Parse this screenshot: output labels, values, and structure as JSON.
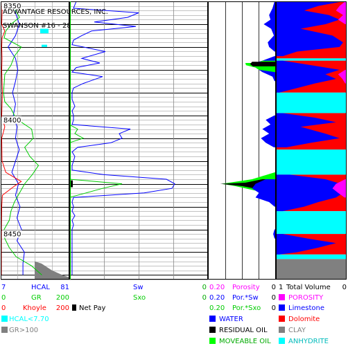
{
  "header": {
    "company": "ADVANTAGE RESOURCES, INC.",
    "well": "SWANSON #16 - 28"
  },
  "chart_data": {
    "type": "line",
    "title": "",
    "depth_axis": {
      "label": "",
      "range": [
        8350,
        8472
      ],
      "tick_labels": [
        "8350",
        "8400",
        "8450"
      ],
      "tick_values": [
        8350,
        8400,
        8450
      ]
    },
    "tracks": [
      {
        "name": "track-1",
        "curves": [
          {
            "label": "HCAL",
            "min": "7",
            "max": "81",
            "color": "#0000ff",
            "depth": [
              8350,
              8355,
              8360,
              8365,
              8370,
              8375,
              8380,
              8385,
              8390,
              8395,
              8400,
              8405,
              8410,
              8415,
              8420,
              8425,
              8430,
              8435,
              8440,
              8445,
              8450,
              8455,
              8460,
              8465,
              8470
            ],
            "values": [
              9,
              9,
              9.5,
              9,
              8,
              9,
              9.3,
              9,
              8.6,
              9,
              8.7,
              9.2,
              9,
              9.5,
              9,
              8.5,
              9.4,
              9,
              9.6,
              9.2,
              9.8,
              9.2,
              10.2,
              10,
              10
            ]
          },
          {
            "label": "GR",
            "min": "0",
            "max": "200",
            "color": "#00cc00",
            "depth": [
              8350,
              8353,
              8357,
              8360,
              8363,
              8366,
              8370,
              8374,
              8378,
              8382,
              8386,
              8390,
              8394,
              8397,
              8400,
              8403,
              8406,
              8410,
              8414,
              8418,
              8422,
              8426,
              8430,
              8434,
              8438,
              8442,
              8446,
              8450,
              8454,
              8458,
              8462,
              8466,
              8470
            ],
            "values": [
              20,
              40,
              55,
              30,
              15,
              10,
              60,
              40,
              30,
              12,
              10,
              8,
              12,
              30,
              40,
              60,
              90,
              95,
              70,
              85,
              110,
              92,
              70,
              55,
              40,
              30,
              25,
              10,
              12,
              25,
              45,
              90,
              120
            ]
          },
          {
            "label": "Khoyle",
            "min": "0",
            "max": "200",
            "color": "#ff0000",
            "depth": [
              8350,
              8355,
              8360,
              8363,
              8366,
              8370,
              8375,
              8380,
              8390,
              8395,
              8400,
              8405,
              8410,
              8420,
              8425,
              8429,
              8431,
              8435,
              8440,
              8450,
              8460,
              8470
            ],
            "values": [
              5,
              4,
              3,
              12,
              4,
              3,
              4,
              3,
              5,
              4,
              3,
              12,
              3,
              4,
              15,
              60,
              40,
              5,
              3,
              2,
              2,
              2
            ]
          }
        ],
        "fills": [
          {
            "label": "HCAL<7.70",
            "color": "#00ffff"
          },
          {
            "label": "GR>100",
            "color": "#808080"
          }
        ]
      },
      {
        "name": "track-2",
        "curves": [
          {
            "label": "Sw",
            "min": "",
            "max": "0",
            "color": "#0000ff",
            "depth": [
              8350,
              8353,
              8355,
              8357,
              8359,
              8361,
              8363,
              8365,
              8367,
              8369,
              8372,
              8375,
              8377,
              8379,
              8381,
              8383,
              8386,
              8388,
              8390,
              8393,
              8396,
              8398,
              8400,
              8402,
              8404,
              8406,
              8408,
              8410,
              8412,
              8414,
              8416,
              8418,
              8420,
              8422,
              8424,
              8426,
              8428,
              8430,
              8432,
              8434,
              8436,
              8438,
              8440,
              8442,
              8444,
              8446,
              8448,
              8450,
              8455,
              8460,
              8465,
              8470
            ],
            "values": [
              5,
              3,
              50,
              42,
              18,
              48,
              16,
              9,
              3,
              2,
              26,
              9,
              22,
              5,
              2,
              24,
              10,
              3,
              2,
              2,
              4,
              2,
              3,
              3,
              2,
              44,
              36,
              38,
              30,
              6,
              2,
              4,
              3,
              2,
              2,
              25,
              70,
              76,
              74,
              54,
              3,
              2,
              3,
              2,
              4,
              2,
              3,
              2,
              2,
              2,
              2,
              2
            ]
          },
          {
            "label": "Sxo",
            "min": "",
            "max": "0",
            "color": "#00cc00",
            "depth": [
              8350,
              8360,
              8404,
              8406,
              8408,
              8410,
              8412,
              8420,
              8428,
              8430,
              8432,
              8434,
              8436,
              8450,
              8470
            ],
            "values": [
              0,
              0,
              0,
              6,
              4,
              10,
              0,
              0,
              0,
              38,
              24,
              12,
              0,
              0,
              0
            ]
          }
        ]
      },
      {
        "name": "track-3",
        "curves": [
          {
            "label": "Porosity",
            "min": "0.20",
            "max": "0",
            "color": "#ff00ff"
          },
          {
            "label": "Por.*Sw",
            "min": "0.20",
            "max": "0",
            "color": "#0000ff"
          },
          {
            "label": "Por.*Sxo",
            "min": "0.20",
            "max": "0",
            "color": "#00cc00"
          }
        ],
        "fills": [
          {
            "label": "WATER",
            "color": "#0000ff"
          },
          {
            "label": "RESIDUAL OIL",
            "color": "#000000"
          },
          {
            "label": "MOVEABLE OIL",
            "color": "#00ff00"
          }
        ]
      },
      {
        "name": "track-4",
        "curves": [
          {
            "label": "Total Volume",
            "min": "1",
            "max": "0",
            "color": "#000000"
          }
        ],
        "fills": [
          {
            "label": "POROSITY",
            "color": "#ff00ff"
          },
          {
            "label": "Limestone",
            "color": "#0000ff"
          },
          {
            "label": "Dolomite",
            "color": "#ff0000"
          },
          {
            "label": "CLAY",
            "color": "#808080"
          },
          {
            "label": "ANHYDRITE",
            "color": "#00ffff"
          }
        ]
      }
    ],
    "net_pay": {
      "label": "Net Pay",
      "color": "#000000",
      "intervals": [
        [
          8428.5,
          8431.5
        ]
      ]
    }
  }
}
